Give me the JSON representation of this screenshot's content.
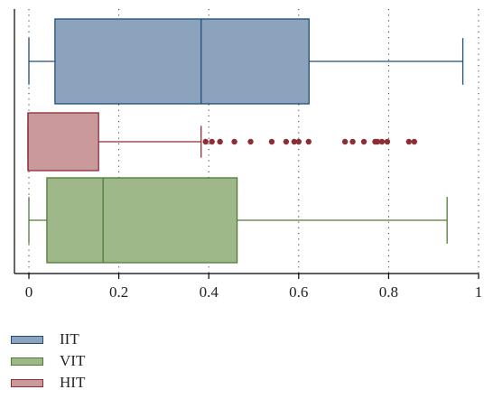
{
  "chart_data": {
    "type": "boxplot",
    "orientation": "horizontal",
    "xlim": [
      -0.03,
      1.0
    ],
    "x_ticks": [
      0,
      0.2,
      0.4,
      0.6,
      0.8,
      1
    ],
    "x_tick_labels": [
      "0",
      "0.2",
      "0.4",
      "0.6",
      "0.8",
      "1"
    ],
    "grid": "vertical-dotted",
    "legend_position": "bottom-left",
    "series": [
      {
        "name": "IIT",
        "color_fill": "#8BA3BD",
        "color_line": "#1F4E79",
        "whisker_low": 0.0,
        "q1": 0.058,
        "median": 0.383,
        "q3": 0.623,
        "whisker_high": 0.965,
        "outliers": []
      },
      {
        "name": "HIT",
        "color_fill": "#C9999C",
        "color_line": "#8B2F35",
        "whisker_low": -0.002,
        "q1": -0.002,
        "median": -0.002,
        "q3": 0.155,
        "whisker_high": 0.383,
        "outliers": [
          0.393,
          0.407,
          0.425,
          0.457,
          0.493,
          0.54,
          0.572,
          0.59,
          0.6,
          0.622,
          0.703,
          0.72,
          0.745,
          0.77,
          0.775,
          0.785,
          0.797,
          0.845,
          0.857
        ]
      },
      {
        "name": "VIT",
        "color_fill": "#9FB88A",
        "color_line": "#4F7A35",
        "whisker_low": 0.0,
        "q1": 0.04,
        "median": 0.165,
        "q3": 0.463,
        "whisker_high": 0.93,
        "outliers": []
      }
    ]
  },
  "legend": {
    "items": [
      {
        "label": "IIT",
        "fill": "#8BA3BD",
        "stroke": "#1F4E79"
      },
      {
        "label": "VIT",
        "fill": "#9FB88A",
        "stroke": "#4F7A35"
      },
      {
        "label": "HIT",
        "fill": "#C9999C",
        "stroke": "#8B2F35"
      }
    ]
  }
}
